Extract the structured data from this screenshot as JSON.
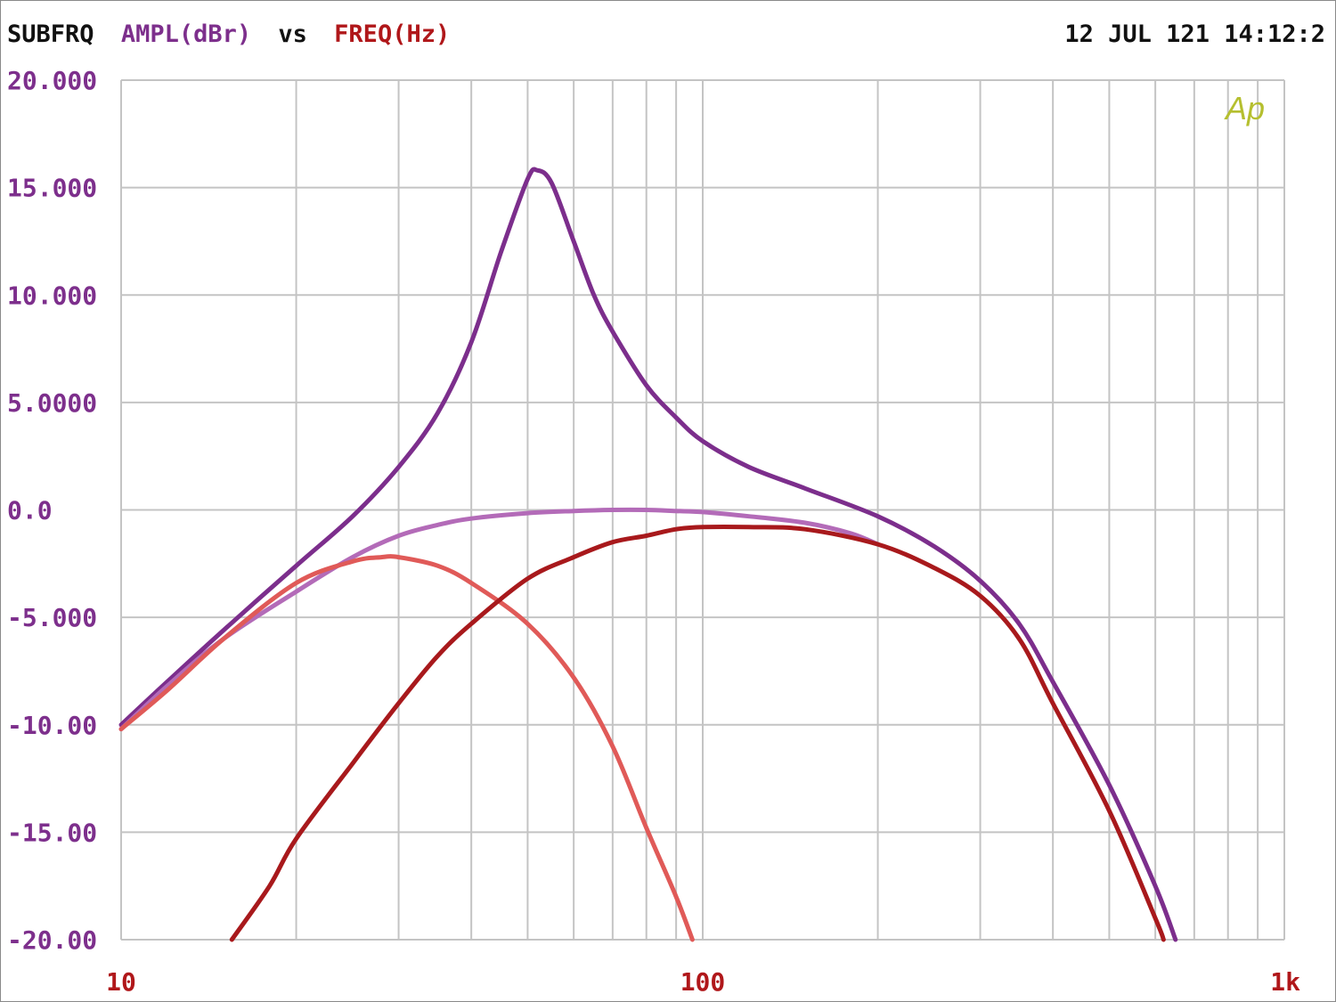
{
  "header": {
    "prefix": "SUBFRQ",
    "y_label": "AMPL(dBr)",
    "vs": "vs",
    "x_label": "FREQ(Hz)",
    "timestamp": "12 JUL 121 14:12:2"
  },
  "logo_text": "Ap",
  "colors": {
    "background": "#ffffff",
    "grid": "#c4c4c4",
    "y_axis_text": "#7d2f8c",
    "x_axis_text": "#b0171a",
    "header_text": "#111111",
    "logo": "#b5bf2f"
  },
  "chart_data": {
    "type": "line",
    "title": "",
    "xlabel": "FREQ(Hz)",
    "ylabel": "AMPL(dBr)",
    "x_scale": "log",
    "xlim": [
      10,
      1000
    ],
    "ylim": [
      -20,
      20
    ],
    "grid": true,
    "x_tick_labels": [
      {
        "value": 10,
        "label": "10"
      },
      {
        "value": 100,
        "label": "100"
      },
      {
        "value": 1000,
        "label": "1k"
      }
    ],
    "y_tick_labels": [
      {
        "value": 20,
        "label": "20.000"
      },
      {
        "value": 15,
        "label": "15.000"
      },
      {
        "value": 10,
        "label": "10.000"
      },
      {
        "value": 5,
        "label": "5.0000"
      },
      {
        "value": 0,
        "label": "0.0"
      },
      {
        "value": -5,
        "label": "-5.000"
      },
      {
        "value": -10,
        "label": "-10.00"
      },
      {
        "value": -15,
        "label": "-15.00"
      },
      {
        "value": -20,
        "label": "-20.00"
      }
    ],
    "series": [
      {
        "color": "#7c2e8c",
        "points": [
          [
            10,
            -10
          ],
          [
            12,
            -8
          ],
          [
            15,
            -5.6
          ],
          [
            20,
            -2.6
          ],
          [
            25,
            -0.3
          ],
          [
            30,
            2
          ],
          [
            35,
            4.5
          ],
          [
            40,
            7.8
          ],
          [
            45,
            12
          ],
          [
            50,
            15.4
          ],
          [
            52,
            15.8
          ],
          [
            55,
            15.2
          ],
          [
            60,
            12.5
          ],
          [
            65,
            10
          ],
          [
            70,
            8.3
          ],
          [
            80,
            5.8
          ],
          [
            90,
            4.3
          ],
          [
            100,
            3.2
          ],
          [
            120,
            2
          ],
          [
            150,
            1
          ],
          [
            200,
            -0.3
          ],
          [
            250,
            -1.7
          ],
          [
            300,
            -3.3
          ],
          [
            350,
            -5.3
          ],
          [
            400,
            -8
          ],
          [
            500,
            -12.8
          ],
          [
            600,
            -17.5
          ],
          [
            650,
            -20
          ]
        ]
      },
      {
        "color": "#b36bb8",
        "points": [
          [
            10,
            -10.2
          ],
          [
            12,
            -8.2
          ],
          [
            15,
            -6
          ],
          [
            20,
            -3.8
          ],
          [
            25,
            -2.2
          ],
          [
            30,
            -1.2
          ],
          [
            35,
            -0.7
          ],
          [
            40,
            -0.4
          ],
          [
            50,
            -0.15
          ],
          [
            60,
            -0.05
          ],
          [
            70,
            0
          ],
          [
            80,
            0
          ],
          [
            90,
            -0.05
          ],
          [
            100,
            -0.1
          ],
          [
            120,
            -0.3
          ],
          [
            150,
            -0.6
          ],
          [
            180,
            -1.1
          ],
          [
            200,
            -1.6
          ]
        ]
      },
      {
        "color": "#e05a58",
        "points": [
          [
            10,
            -10.2
          ],
          [
            12,
            -8.4
          ],
          [
            15,
            -6
          ],
          [
            20,
            -3.4
          ],
          [
            25,
            -2.4
          ],
          [
            28,
            -2.2
          ],
          [
            30,
            -2.2
          ],
          [
            35,
            -2.6
          ],
          [
            40,
            -3.4
          ],
          [
            50,
            -5.3
          ],
          [
            60,
            -7.8
          ],
          [
            70,
            -11
          ],
          [
            80,
            -14.8
          ],
          [
            90,
            -18
          ],
          [
            96,
            -20
          ]
        ]
      },
      {
        "color": "#a8191c",
        "points": [
          [
            15.5,
            -20
          ],
          [
            18,
            -17.5
          ],
          [
            20,
            -15.3
          ],
          [
            25,
            -11.8
          ],
          [
            30,
            -9
          ],
          [
            35,
            -6.8
          ],
          [
            40,
            -5.3
          ],
          [
            50,
            -3.2
          ],
          [
            60,
            -2.2
          ],
          [
            70,
            -1.5
          ],
          [
            80,
            -1.2
          ],
          [
            90,
            -0.9
          ],
          [
            100,
            -0.8
          ],
          [
            120,
            -0.8
          ],
          [
            150,
            -0.9
          ],
          [
            200,
            -1.6
          ],
          [
            250,
            -2.7
          ],
          [
            300,
            -4
          ],
          [
            350,
            -6
          ],
          [
            400,
            -9
          ],
          [
            500,
            -14
          ],
          [
            600,
            -19
          ],
          [
            620,
            -20
          ]
        ]
      }
    ]
  }
}
